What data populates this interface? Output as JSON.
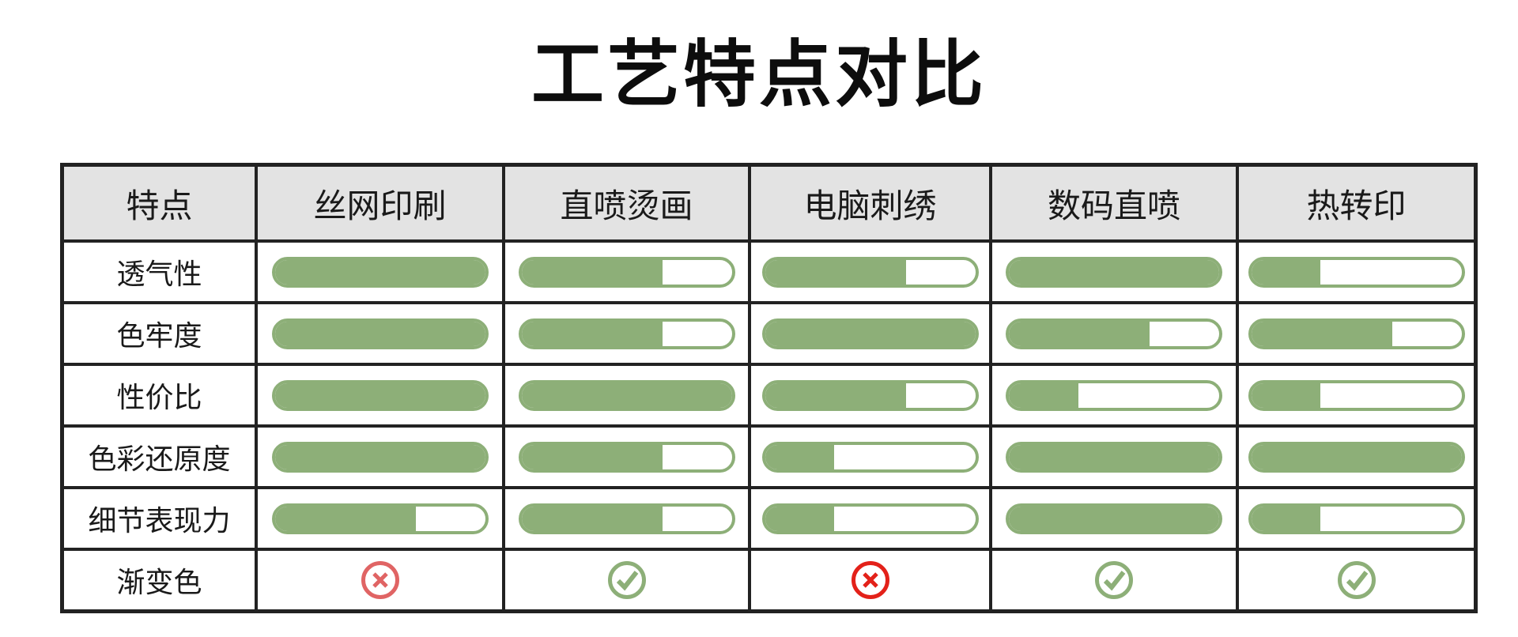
{
  "title": "工艺特点对比",
  "colors": {
    "bar": "#8daf78",
    "check": "#8daf78",
    "cross_light": "#e06464",
    "cross": "#e32119",
    "header_bg": "#e3e3e3",
    "border": "#222222"
  },
  "table": {
    "headers": [
      "特点",
      "丝网印刷",
      "直喷烫画",
      "电脑刺绣",
      "数码直喷",
      "热转印"
    ],
    "rows": [
      {
        "label": "透气性",
        "levels": [
          1,
          0.67,
          0.67,
          1,
          0.33
        ]
      },
      {
        "label": "色牢度",
        "levels": [
          1,
          0.67,
          1,
          0.67,
          0.67
        ]
      },
      {
        "label": "性价比",
        "levels": [
          1,
          1,
          0.67,
          0.33,
          0.33
        ]
      },
      {
        "label": "色彩还原度",
        "levels": [
          1,
          0.67,
          0.33,
          1,
          1
        ]
      },
      {
        "label": "细节表现力",
        "levels": [
          0.67,
          0.67,
          0.33,
          1,
          0.33
        ]
      }
    ],
    "gradient_row": {
      "label": "渐变色",
      "marks": [
        {
          "icon": "cross-circle-icon",
          "color": "#e06464"
        },
        {
          "icon": "check-circle-icon",
          "color": "#8daf78"
        },
        {
          "icon": "cross-circle-icon",
          "color": "#e32119"
        },
        {
          "icon": "check-circle-icon",
          "color": "#8daf78"
        },
        {
          "icon": "check-circle-icon",
          "color": "#8daf78"
        }
      ]
    }
  }
}
